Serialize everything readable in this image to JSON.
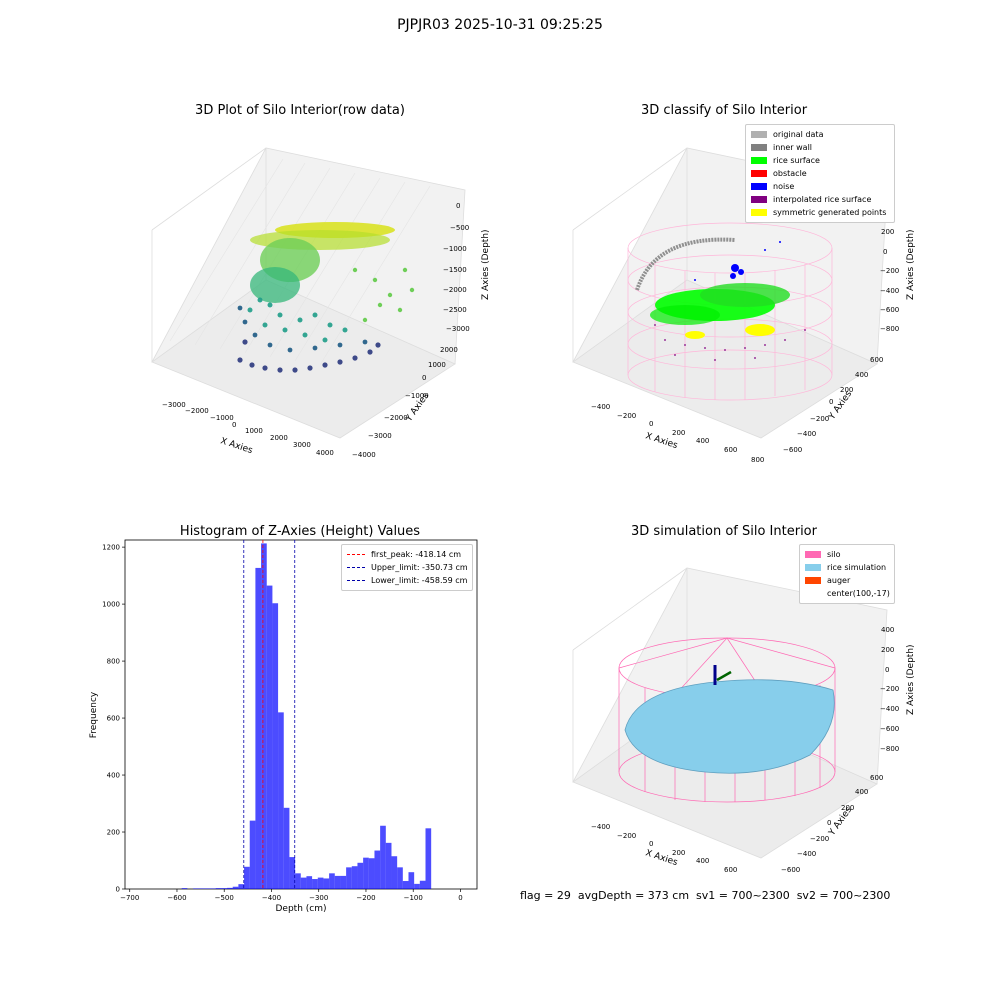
{
  "figure_title": "PJPJR03 2025-10-31 09:25:25",
  "footer_text": "flag = 29  avgDepth = 373 cm  sv1 = 700~2300  sv2 = 700~2300",
  "panel1": {
    "title": "3D Plot of Silo Interior(row data)",
    "xlabel": "X Axies",
    "ylabel": "Y Axies",
    "zlabel": "Z Axies (Depth)",
    "xticks": [
      "−3000",
      "−2000",
      "−1000",
      "0",
      "1000",
      "2000",
      "3000",
      "4000"
    ],
    "yticks": [
      "−4000",
      "−3000",
      "−2000",
      "−1000",
      "0",
      "1000",
      "2000"
    ],
    "zticks": [
      "0",
      "−500",
      "−1000",
      "−1500",
      "−2000",
      "−2500",
      "−3000"
    ]
  },
  "panel2": {
    "title": "3D classify of Silo Interior",
    "xlabel": "X Axies",
    "ylabel": "Y Axies",
    "zlabel": "Z Axies (Depth)",
    "xticks": [
      "−400",
      "−200",
      "0",
      "200",
      "400",
      "600",
      "800"
    ],
    "yticks": [
      "−600",
      "−400",
      "−200",
      "0",
      "200",
      "400",
      "600"
    ],
    "zticks": [
      "200",
      "0",
      "−200",
      "−400",
      "−600",
      "−800"
    ],
    "zextra": "00",
    "legend": [
      {
        "label": "original data",
        "color": "#b0b0b0"
      },
      {
        "label": "inner wall",
        "color": "#808080"
      },
      {
        "label": "rice surface",
        "color": "#00ff00"
      },
      {
        "label": "obstacle",
        "color": "#ff0000"
      },
      {
        "label": "noise",
        "color": "#0000ff"
      },
      {
        "label": "interpolated rice surface",
        "color": "#800080"
      },
      {
        "label": "symmetric generated points",
        "color": "#ffff00"
      }
    ]
  },
  "panel4": {
    "title": "3D simulation of Silo Interior",
    "xlabel": "X Axies",
    "ylabel": "Y Axies",
    "zlabel": "Z Axies (Depth)",
    "xticks": [
      "−400",
      "−200",
      "0",
      "200",
      "400",
      "600"
    ],
    "yticks": [
      "−600",
      "−400",
      "−200",
      "0",
      "200",
      "400",
      "600"
    ],
    "zticks": [
      "400",
      "200",
      "0",
      "−200",
      "−400",
      "−600",
      "−800"
    ],
    "legend": [
      {
        "label": "silo",
        "color": "#ff69b4"
      },
      {
        "label": "rice simulation",
        "color": "#87ceeb"
      },
      {
        "label": "auger",
        "color": "#ff4500"
      },
      {
        "label": "center(100,-17)",
        "color": ""
      }
    ]
  },
  "chart_data": {
    "type": "bar",
    "title": "Histogram of Z-Axies (Height) Values",
    "xlabel": "Depth (cm)",
    "ylabel": "Frequency",
    "xlim": [
      -710,
      35
    ],
    "ylim": [
      0,
      1225
    ],
    "xticks": [
      -700,
      -600,
      -500,
      -400,
      -300,
      -200,
      -100,
      0
    ],
    "yticks": [
      0,
      200,
      400,
      600,
      800,
      1000,
      1200
    ],
    "bar_color": "#0000ff",
    "bin_width": 12,
    "bins": [
      {
        "x": -698,
        "value": 0
      },
      {
        "x": -686,
        "value": 0
      },
      {
        "x": -674,
        "value": 0
      },
      {
        "x": -662,
        "value": 0
      },
      {
        "x": -650,
        "value": 0
      },
      {
        "x": -638,
        "value": 0
      },
      {
        "x": -626,
        "value": 0
      },
      {
        "x": -614,
        "value": 0
      },
      {
        "x": -602,
        "value": 0
      },
      {
        "x": -590,
        "value": 3
      },
      {
        "x": -578,
        "value": 0
      },
      {
        "x": -566,
        "value": 2
      },
      {
        "x": -554,
        "value": 2
      },
      {
        "x": -542,
        "value": 2
      },
      {
        "x": -530,
        "value": 2
      },
      {
        "x": -518,
        "value": 3
      },
      {
        "x": -506,
        "value": 3
      },
      {
        "x": -494,
        "value": 4
      },
      {
        "x": -482,
        "value": 8
      },
      {
        "x": -470,
        "value": 17
      },
      {
        "x": -458,
        "value": 78
      },
      {
        "x": -446,
        "value": 240
      },
      {
        "x": -434,
        "value": 1127
      },
      {
        "x": -422,
        "value": 1213
      },
      {
        "x": -410,
        "value": 1065
      },
      {
        "x": -398,
        "value": 1003
      },
      {
        "x": -386,
        "value": 620
      },
      {
        "x": -374,
        "value": 285
      },
      {
        "x": -362,
        "value": 112
      },
      {
        "x": -350,
        "value": 55
      },
      {
        "x": -338,
        "value": 40
      },
      {
        "x": -326,
        "value": 45
      },
      {
        "x": -314,
        "value": 35
      },
      {
        "x": -302,
        "value": 40
      },
      {
        "x": -290,
        "value": 37
      },
      {
        "x": -278,
        "value": 55
      },
      {
        "x": -266,
        "value": 46
      },
      {
        "x": -254,
        "value": 46
      },
      {
        "x": -242,
        "value": 76
      },
      {
        "x": -230,
        "value": 80
      },
      {
        "x": -218,
        "value": 92
      },
      {
        "x": -206,
        "value": 110
      },
      {
        "x": -194,
        "value": 108
      },
      {
        "x": -182,
        "value": 135
      },
      {
        "x": -170,
        "value": 222
      },
      {
        "x": -158,
        "value": 162
      },
      {
        "x": -146,
        "value": 115
      },
      {
        "x": -134,
        "value": 76
      },
      {
        "x": -122,
        "value": 28
      },
      {
        "x": -110,
        "value": 59
      },
      {
        "x": -98,
        "value": 18
      },
      {
        "x": -86,
        "value": 29
      },
      {
        "x": -74,
        "value": 213
      },
      {
        "x": -62,
        "value": 0
      }
    ],
    "vlines": [
      {
        "name": "first_peak: -418.14 cm",
        "x": -418.14,
        "color": "#ff0000"
      },
      {
        "name": "Upper_limit: -350.73 cm",
        "x": -350.73,
        "color": "#0000aa"
      },
      {
        "name": "Lower_limit: -458.59 cm",
        "x": -458.59,
        "color": "#0000aa"
      }
    ],
    "legend_position": "top-right"
  }
}
